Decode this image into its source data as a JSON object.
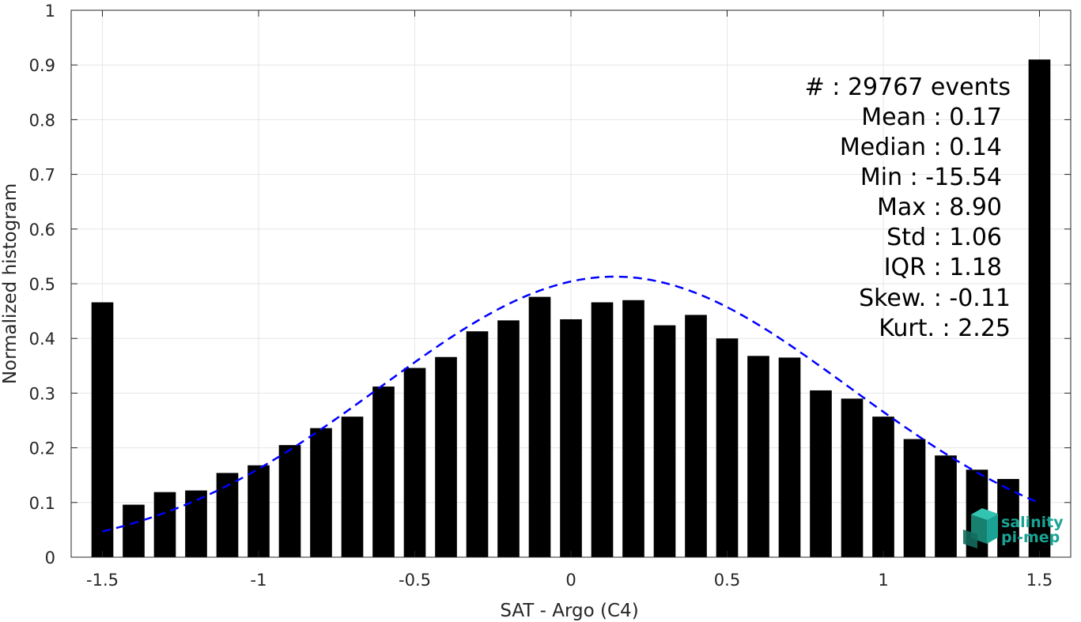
{
  "chart_data": {
    "type": "bar",
    "xlabel": "SAT - Argo (C4)",
    "ylabel": "Normalized histogram",
    "xlim": [
      -1.6,
      1.6
    ],
    "ylim": [
      0,
      1
    ],
    "grid": true,
    "x_ticks": [
      -1.5,
      -1,
      -0.5,
      0,
      0.5,
      1,
      1.5
    ],
    "x_tick_labels": [
      "-1.5",
      "-1",
      "-0.5",
      "0",
      "0.5",
      "1",
      "1.5"
    ],
    "y_ticks": [
      0,
      0.1,
      0.2,
      0.3,
      0.4,
      0.5,
      0.6,
      0.7,
      0.8,
      0.9,
      1
    ],
    "y_tick_labels": [
      "0",
      "0.1",
      "0.2",
      "0.3",
      "0.4",
      "0.5",
      "0.6",
      "0.7",
      "0.8",
      "0.9",
      "1"
    ],
    "bar_color": "#000000",
    "bar_width": 0.07,
    "x": [
      -1.5,
      -1.4,
      -1.3,
      -1.2,
      -1.1,
      -1.0,
      -0.9,
      -0.8,
      -0.7,
      -0.6,
      -0.5,
      -0.4,
      -0.3,
      -0.2,
      -0.1,
      0.0,
      0.1,
      0.2,
      0.3,
      0.4,
      0.5,
      0.6,
      0.7,
      0.8,
      0.9,
      1.0,
      1.1,
      1.2,
      1.3,
      1.4,
      1.5
    ],
    "values": [
      0.466,
      0.096,
      0.119,
      0.122,
      0.154,
      0.168,
      0.205,
      0.236,
      0.257,
      0.312,
      0.346,
      0.366,
      0.413,
      0.433,
      0.476,
      0.435,
      0.466,
      0.47,
      0.424,
      0.443,
      0.4,
      0.368,
      0.365,
      0.305,
      0.29,
      0.257,
      0.216,
      0.186,
      0.16,
      0.143,
      0.91
    ],
    "fit_curve": {
      "type": "gaussian",
      "style": "dashed",
      "color": "#0000ff",
      "x_range": [
        -1.5,
        1.5
      ],
      "peak_x": 0.14,
      "peak_y": 0.513,
      "sigma": 0.75
    },
    "stats": [
      "#  : 29767 events",
      "Mean : 0.17",
      "Median : 0.14",
      "Min : -15.54",
      "Max : 8.90",
      "Std : 1.06",
      "IQR : 1.18",
      "Skew. : -0.11",
      "Kurt. : 2.25"
    ]
  },
  "logo": {
    "line1": "salinity",
    "line2": "pi-mep",
    "color": "#1aa394"
  }
}
